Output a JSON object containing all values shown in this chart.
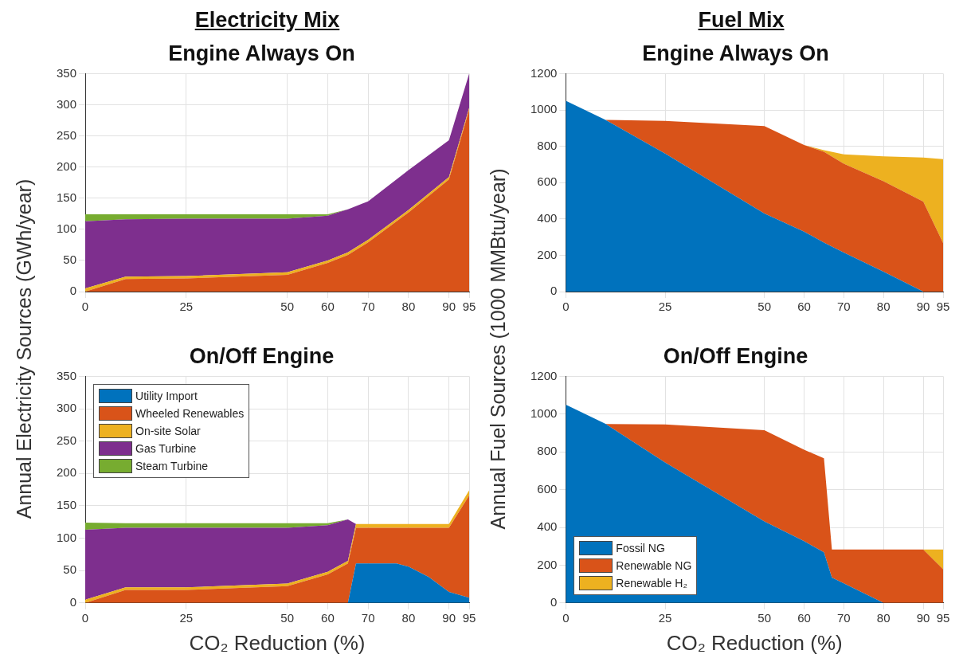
{
  "chart_data": [
    {
      "type": "area",
      "subtitle": "Electricity Mix",
      "title": "Engine Always On",
      "ylabel": "Annual Electricity Sources (GWh/year)",
      "stacked": true,
      "x": [
        0,
        10,
        25,
        50,
        60,
        65,
        70,
        80,
        90,
        95
      ],
      "xlim": [
        0,
        95
      ],
      "xticks": [
        0,
        25,
        50,
        60,
        70,
        80,
        90,
        95
      ],
      "ylim": [
        0,
        350
      ],
      "yticks": [
        0,
        50,
        100,
        150,
        200,
        250,
        300,
        350
      ],
      "grid": true,
      "series": [
        {
          "color": "#d95319",
          "values": [
            0,
            20,
            21,
            27,
            46,
            59,
            79,
            127,
            180,
            292
          ]
        },
        {
          "color": "#edb120",
          "values": [
            5,
            4,
            4,
            4,
            4,
            4,
            4,
            4,
            4,
            3
          ]
        },
        {
          "color": "#7e2f8e",
          "values": [
            108,
            92,
            92,
            86,
            72,
            69,
            62,
            64,
            59,
            55
          ]
        },
        {
          "color": "#77ac30",
          "values": [
            11,
            8,
            7,
            7,
            2,
            0,
            0,
            0,
            0,
            0
          ]
        }
      ]
    },
    {
      "type": "area",
      "subtitle": "Fuel Mix",
      "title": "Engine Always On",
      "ylabel": "Annual Fuel Sources (1000 MMBtu/year)",
      "stacked": true,
      "x": [
        0,
        10,
        25,
        50,
        60,
        65,
        70,
        80,
        90,
        95
      ],
      "xlim": [
        0,
        95
      ],
      "xticks": [
        0,
        25,
        50,
        60,
        70,
        80,
        90,
        95
      ],
      "ylim": [
        0,
        1200
      ],
      "yticks": [
        0,
        200,
        400,
        600,
        800,
        1000,
        1200
      ],
      "grid": true,
      "series": [
        {
          "color": "#0072bd",
          "values": [
            1050,
            945,
            760,
            430,
            330,
            270,
            215,
            110,
            0,
            0
          ]
        },
        {
          "color": "#d95319",
          "values": [
            null,
            0,
            180,
            481,
            477,
            500,
            489,
            497,
            496,
            267
          ]
        },
        {
          "color": "#edb120",
          "values": [
            null,
            null,
            null,
            null,
            0,
            8,
            51,
            137,
            242,
            462
          ]
        }
      ]
    },
    {
      "type": "area",
      "title": "On/Off Engine",
      "xlabel": "CO₂ Reduction (%)",
      "stacked": true,
      "x": [
        0,
        10,
        25,
        50,
        60,
        65,
        67,
        70,
        77,
        80,
        85,
        90,
        95
      ],
      "xlim": [
        0,
        95
      ],
      "xticks": [
        0,
        25,
        50,
        60,
        70,
        80,
        90,
        95
      ],
      "ylim": [
        0,
        350
      ],
      "yticks": [
        0,
        50,
        100,
        150,
        200,
        250,
        300,
        350
      ],
      "grid": true,
      "legend": "top left",
      "series": [
        {
          "name": "Utility Import",
          "color": "#0072bd",
          "values": [
            0,
            0,
            0,
            0,
            0,
            0,
            61,
            61,
            61,
            56,
            40,
            17,
            8
          ]
        },
        {
          "name": "Wheeled Renewables",
          "color": "#d95319",
          "values": [
            0,
            20,
            20,
            26,
            44,
            61,
            55,
            55,
            55,
            60,
            76,
            99,
            158
          ]
        },
        {
          "name": "On-site Solar",
          "color": "#edb120",
          "values": [
            5,
            4,
            4,
            4,
            4,
            4,
            6,
            6,
            6,
            6,
            6,
            6,
            8
          ]
        },
        {
          "name": "Gas Turbine",
          "color": "#7e2f8e",
          "values": [
            108,
            92,
            92,
            86,
            72,
            64,
            0,
            0,
            0,
            0,
            0,
            0,
            0
          ]
        },
        {
          "name": "Steam Turbine",
          "color": "#77ac30",
          "values": [
            11,
            7,
            7,
            7,
            3,
            0,
            0,
            0,
            0,
            0,
            0,
            0,
            0
          ]
        }
      ]
    },
    {
      "type": "area",
      "title": "On/Off Engine",
      "xlabel": "CO₂ Reduction (%)",
      "stacked": true,
      "x": [
        0,
        10,
        25,
        50,
        60,
        65,
        67,
        70,
        80,
        90,
        95
      ],
      "xlim": [
        0,
        95
      ],
      "xticks": [
        0,
        25,
        50,
        60,
        70,
        80,
        90,
        95
      ],
      "ylim": [
        0,
        1200
      ],
      "yticks": [
        0,
        200,
        400,
        600,
        800,
        1000,
        1200
      ],
      "grid": true,
      "legend": "bottom left",
      "series": [
        {
          "name": "Fossil NG",
          "color": "#0072bd",
          "values": [
            1050,
            948,
            744,
            432,
            327,
            268,
            134,
            104,
            0,
            0,
            0
          ]
        },
        {
          "name": "Renewable NG",
          "color": "#d95319",
          "values": [
            null,
            0,
            201,
            483,
            484,
            498,
            149,
            179,
            283,
            283,
            179
          ]
        },
        {
          "name": "Renewable H₂",
          "color": "#edb120",
          "values": [
            null,
            null,
            null,
            null,
            null,
            null,
            null,
            null,
            null,
            0,
            104
          ]
        }
      ]
    }
  ]
}
